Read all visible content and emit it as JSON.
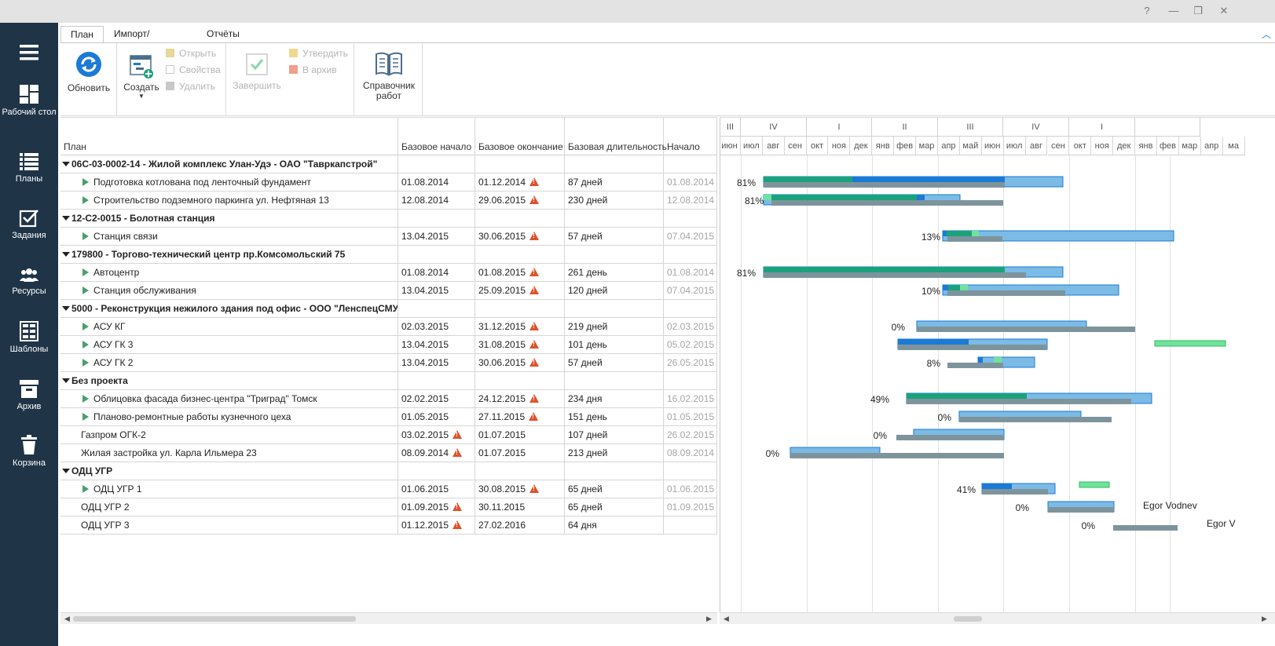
{
  "window": {
    "help": "?",
    "minimize": "—",
    "restore": "❐",
    "close": "✕"
  },
  "sidebar": {
    "items": [
      {
        "label": "",
        "icon": "menu-icon"
      },
      {
        "label": "Рабочий стол",
        "icon": "dashboard-icon"
      },
      {
        "label": "Планы",
        "icon": "plans-icon"
      },
      {
        "label": "Задания",
        "icon": "tasks-icon"
      },
      {
        "label": "Ресурсы",
        "icon": "resources-icon"
      },
      {
        "label": "Шаблоны",
        "icon": "templates-icon"
      },
      {
        "label": "Архив",
        "icon": "archive-icon"
      },
      {
        "label": "Корзина",
        "icon": "trash-icon"
      }
    ]
  },
  "tabs": [
    {
      "label": "План"
    },
    {
      "label": "Импорт/Экспорт"
    },
    {
      "label": "Отчёты"
    }
  ],
  "ribbon": {
    "refresh": "Обновить",
    "create": "Создать",
    "open": "Открыть",
    "properties": "Свойства",
    "delete": "Удалить",
    "finish": "Завершить",
    "approve": "Утвердить",
    "to_archive": "В архив",
    "reference": "Справочник работ"
  },
  "grid": {
    "columns": [
      "План",
      "Базовое начало",
      "Базовое окончание",
      "Базовая длительность",
      "Начало"
    ],
    "rows": [
      {
        "type": "group",
        "name": "06С-03-0002-14 - Жилой комплекс Улан-Удэ - ОАО \"Тавркапстрой\""
      },
      {
        "type": "task",
        "name": "Подготовка котлована под ленточный фундамент",
        "bstart": "01.08.2014",
        "bend": "01.12.2014",
        "dur": "87 дней",
        "start": "01.08.2014",
        "ws": false,
        "we": true,
        "expand": true
      },
      {
        "type": "task",
        "name": "Строительство подземного паркинга ул. Нефтяная 13",
        "bstart": "12.08.2014",
        "bend": "29.06.2015",
        "dur": "230 дней",
        "start": "12.08.2014",
        "ws": false,
        "we": true,
        "expand": true
      },
      {
        "type": "group",
        "name": "12-С2-0015 - Болотная станция"
      },
      {
        "type": "task",
        "name": "Станция связи",
        "bstart": "13.04.2015",
        "bend": "30.06.2015",
        "dur": "57 дней",
        "start": "07.04.2015",
        "ws": false,
        "we": true,
        "expand": true
      },
      {
        "type": "group",
        "name": "179800 - Торгово-технический центр пр.Комсомольский 75"
      },
      {
        "type": "task",
        "name": "Автоцентр",
        "bstart": "01.08.2014",
        "bend": "01.08.2015",
        "dur": "261 день",
        "start": "01.08.2014",
        "ws": false,
        "we": true,
        "expand": true
      },
      {
        "type": "task",
        "name": "Станция обслуживания",
        "bstart": "13.04.2015",
        "bend": "25.09.2015",
        "dur": "120 дней",
        "start": "07.04.2015",
        "ws": false,
        "we": true,
        "expand": true
      },
      {
        "type": "group",
        "name": "5000 - Реконструкция нежилого здания под офис - ООО \"ЛенспецСМУ\""
      },
      {
        "type": "task",
        "name": "АСУ КГ",
        "bstart": "02.03.2015",
        "bend": "31.12.2015",
        "dur": "219 дней",
        "start": "02.03.2015",
        "ws": false,
        "we": true,
        "expand": true
      },
      {
        "type": "task",
        "name": "АСУ ГК 3",
        "bstart": "13.04.2015",
        "bend": "31.08.2015",
        "dur": "101 день",
        "start": "05.02.2015",
        "ws": false,
        "we": true,
        "expand": true
      },
      {
        "type": "task",
        "name": "АСУ ГК 2",
        "bstart": "13.04.2015",
        "bend": "30.06.2015",
        "dur": "57 дней",
        "start": "26.05.2015",
        "ws": false,
        "we": true,
        "expand": true
      },
      {
        "type": "group",
        "name": "Без проекта"
      },
      {
        "type": "task",
        "name": "Облицовка фасада бизнес-центра \"Триград\" Томск",
        "bstart": "02.02.2015",
        "bend": "24.12.2015",
        "dur": "234 дня",
        "start": "16.02.2015",
        "ws": false,
        "we": true,
        "expand": true
      },
      {
        "type": "task",
        "name": "Планово-ремонтные работы кузнечного цеха",
        "bstart": "01.05.2015",
        "bend": "27.11.2015",
        "dur": "151 день",
        "start": "01.05.2015",
        "ws": false,
        "we": true,
        "expand": true
      },
      {
        "type": "leaf",
        "name": "Газпром ОГК-2",
        "bstart": "03.02.2015",
        "bend": "01.07.2015",
        "dur": "107 дней",
        "start": "26.02.2015",
        "ws": true,
        "we": false,
        "expand": false
      },
      {
        "type": "leaf",
        "name": "Жилая застройка ул. Карла Ильмера 23",
        "bstart": "08.09.2014",
        "bend": "01.07.2015",
        "dur": "213 дней",
        "start": "08.09.2014",
        "ws": true,
        "we": false,
        "expand": false
      },
      {
        "type": "group",
        "name": "ОДЦ УГР"
      },
      {
        "type": "task",
        "name": "ОДЦ УГР 1",
        "bstart": "01.06.2015",
        "bend": "30.08.2015",
        "dur": "65 дней",
        "start": "01.06.2015",
        "ws": false,
        "we": true,
        "expand": true
      },
      {
        "type": "leaf",
        "name": "ОДЦ УГР 2",
        "bstart": "01.09.2015",
        "bend": "30.11.2015",
        "dur": "65 дней",
        "start": "01.09.2015",
        "ws": true,
        "we": false,
        "expand": false
      },
      {
        "type": "leaf",
        "name": "ОДЦ УГР 3",
        "bstart": "01.12.2015",
        "bend": "27.02.2016",
        "dur": "64 дня",
        "start": "",
        "ws": true,
        "we": false,
        "expand": false
      }
    ]
  },
  "gantt": {
    "quarters": [
      "III",
      "IV",
      "I",
      "II",
      "III",
      "IV",
      "I",
      ""
    ],
    "months": [
      "июн",
      "июл",
      "авг",
      "сен",
      "окт",
      "ноя",
      "дек",
      "янв",
      "фев",
      "мар",
      "апр",
      "май",
      "июн",
      "июл",
      "авг",
      "сен",
      "окт",
      "ноя",
      "дек",
      "янв",
      "фев",
      "мар",
      "апр",
      "ма"
    ],
    "colors": {
      "planned": "#7bbbe6",
      "planned_border": "#1a7ad6",
      "progress": "#1aa37a",
      "actual": "#1a7ad6",
      "baseline": "#7e949c",
      "light_green": "#6ee49a"
    },
    "rows": [
      {
        "row": 1,
        "pct": "81%"
      },
      {
        "row": 2,
        "pct": "81%"
      },
      {
        "row": 4,
        "pct": "13%"
      },
      {
        "row": 6,
        "pct": "81%"
      },
      {
        "row": 7,
        "pct": "10%"
      },
      {
        "row": 9,
        "pct": "0%"
      },
      {
        "row": 10,
        "pct": ""
      },
      {
        "row": 11,
        "pct": "8%"
      },
      {
        "row": 13,
        "pct": "49%"
      },
      {
        "row": 14,
        "pct": "0%"
      },
      {
        "row": 15,
        "pct": "0%"
      },
      {
        "row": 16,
        "pct": "0%"
      },
      {
        "row": 18,
        "pct": "41%"
      },
      {
        "row": 19,
        "pct": "0%",
        "resource": "Egor Vodnev"
      },
      {
        "row": 20,
        "pct": "0%",
        "resource": "Egor V"
      }
    ]
  }
}
